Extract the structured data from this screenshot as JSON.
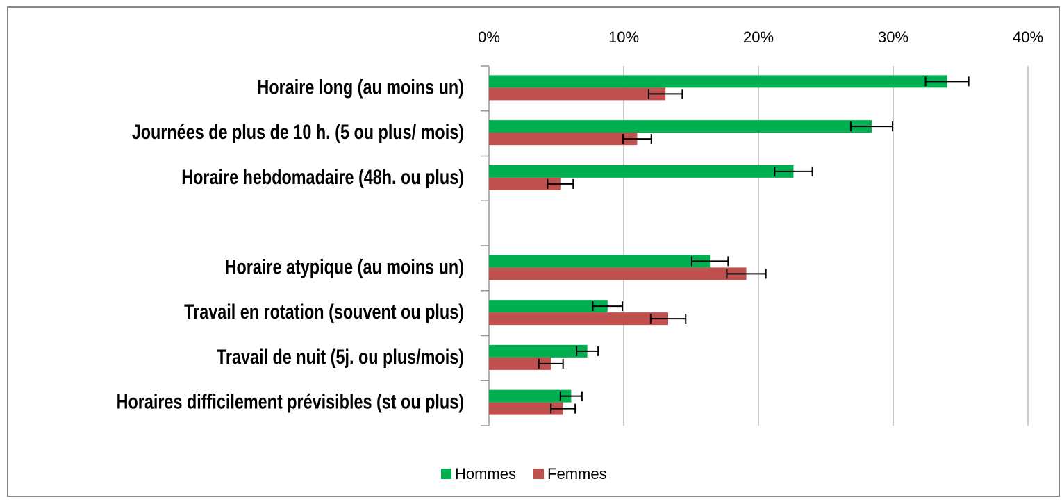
{
  "chart_data": {
    "type": "bar",
    "orientation": "horizontal",
    "categories": [
      "Horaire long (au moins un)",
      "Journées de plus de 10 h. (5 ou plus/ mois)",
      "Horaire hebdomadaire (48h. ou plus)",
      null,
      "Horaire atypique (au moins un)",
      "Travail en rotation (souvent ou plus)",
      "Travail de nuit (5j. ou plus/mois)",
      "Horaires difficilement prévisibles (st ou plus)"
    ],
    "series": [
      {
        "name": "Hommes",
        "color": "#00b050",
        "values": [
          34.0,
          28.4,
          22.6,
          null,
          16.4,
          8.8,
          7.3,
          6.1
        ],
        "errors": [
          1.6,
          1.55,
          1.4,
          null,
          1.35,
          1.1,
          0.8,
          0.8
        ]
      },
      {
        "name": "Femmes",
        "color": "#c0504d",
        "values": [
          13.1,
          11.0,
          5.3,
          null,
          19.1,
          13.3,
          4.6,
          5.5
        ],
        "errors": [
          1.25,
          1.05,
          0.95,
          null,
          1.45,
          1.3,
          0.9,
          0.9
        ]
      }
    ],
    "xlim": [
      0,
      40
    ],
    "xticks": [
      {
        "value": 0,
        "label": "0%"
      },
      {
        "value": 10,
        "label": "10%"
      },
      {
        "value": 20,
        "label": "20%"
      },
      {
        "value": 30,
        "label": "30%"
      },
      {
        "value": 40,
        "label": "40%"
      }
    ],
    "grid": true,
    "legend": "bottom"
  }
}
